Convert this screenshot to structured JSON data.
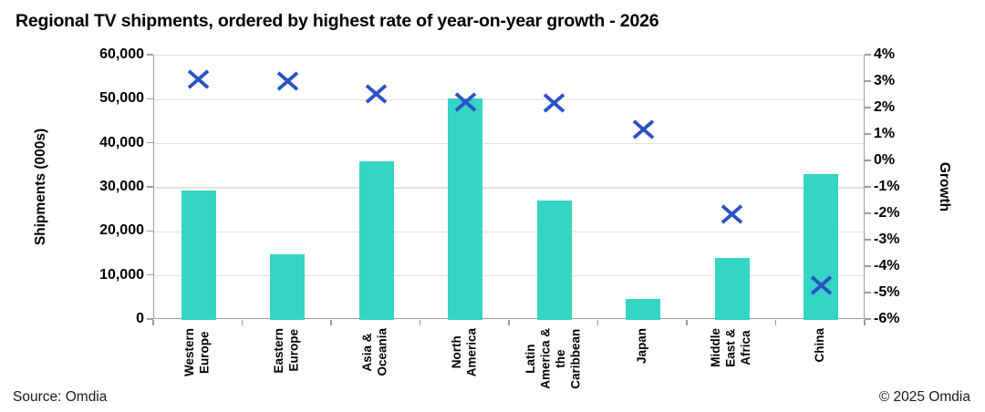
{
  "title": "Regional TV shipments, ordered by highest rate of year-on-year growth - 2026",
  "source": "Source: Omdia",
  "copyright": "© 2025 Omdia",
  "chart_data": {
    "type": "bar",
    "subtype": "bar-with-scatter-x-markers",
    "title": "Regional TV shipments, ordered by highest rate of year-on-year growth - 2026",
    "categories": [
      "Western Europe",
      "Eastern Europe",
      "Asia & Oceania",
      "North America",
      "Latin America & the Caribbean",
      "Japan",
      "Middle East & Africa",
      "China"
    ],
    "category_label_lines": [
      "Western\nEurope",
      "Eastern\nEurope",
      "Asia &\nOceania",
      "North\nAmerica",
      "Latin\nAmerica &\nthe\nCaribbean",
      "Japan",
      "Middle\nEast &\nAfrica",
      "China"
    ],
    "series": [
      {
        "name": "Shipments (000s)",
        "render": "bar",
        "axis": "left",
        "color": "#34d5c4",
        "values": [
          29300,
          14900,
          35900,
          50300,
          27100,
          4700,
          14000,
          33200
        ]
      },
      {
        "name": "Growth",
        "render": "scatter-x",
        "axis": "right",
        "color": "#2a52c5",
        "values": [
          3.1,
          3.05,
          2.55,
          2.25,
          2.2,
          1.2,
          -2.0,
          -4.7
        ]
      }
    ],
    "left_axis": {
      "label": "Shipments (000s)",
      "min": 0,
      "max": 60000,
      "step": 10000,
      "tick_labels": [
        "60,000",
        "50,000",
        "40,000",
        "30,000",
        "20,000",
        "10,000",
        "0"
      ]
    },
    "right_axis": {
      "label": "Growth",
      "min": -6,
      "max": 4,
      "step": 1,
      "tick_labels": [
        "4%",
        "3%",
        "2%",
        "1%",
        "0%",
        "-1%",
        "-2%",
        "-3%",
        "-4%",
        "-5%",
        "-6%"
      ]
    },
    "grid": true,
    "legend": false
  },
  "colors": {
    "bar": "#34d5c4",
    "marker": "#2a52c5",
    "gridline": "#e2e2e2",
    "axis_line": "#9c9c9c"
  }
}
